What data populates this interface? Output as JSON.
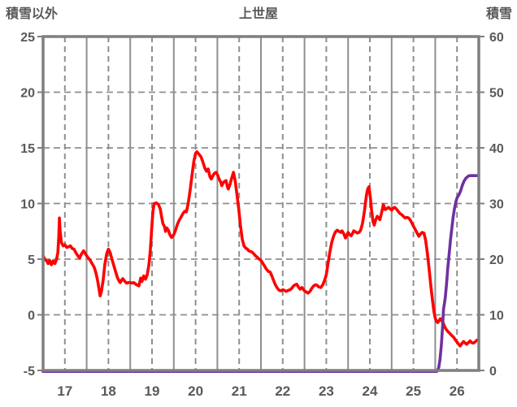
{
  "title": "上世屋",
  "colors": {
    "temp_line": "#ff0000",
    "snow_line": "#7030a0",
    "grid": "#8f8f8f",
    "frame": "#7f7f7f",
    "label": "#595959",
    "background": "#ffffff"
  },
  "chart_data": {
    "type": "line",
    "title": "上世屋",
    "xlim": [
      17,
      27
    ],
    "x_tick_labels": [
      "17",
      "18",
      "19",
      "20",
      "21",
      "22",
      "23",
      "24",
      "25",
      "26"
    ],
    "left_axis": {
      "label": "積雪以外",
      "lim": [
        -5,
        25
      ],
      "ticks": [
        25,
        20,
        15,
        10,
        5,
        0,
        -5
      ]
    },
    "right_axis": {
      "label": "積雪",
      "lim": [
        0,
        60
      ],
      "ticks": [
        60,
        50,
        40,
        30,
        20,
        10,
        0
      ]
    },
    "grid": {
      "horizontal_left_values": [
        20,
        15,
        10,
        5,
        0
      ],
      "vertical_solid_at_day_starts": true,
      "vertical_dashed_at_day_middles": true
    },
    "series": [
      {
        "name": "積雪以外",
        "axis": "left",
        "color": "#ff0000",
        "points": [
          [
            17.0,
            5.3
          ],
          [
            17.04,
            5.0
          ],
          [
            17.08,
            4.85
          ],
          [
            17.115,
            4.6
          ],
          [
            17.15,
            4.9
          ],
          [
            17.19,
            4.5
          ],
          [
            17.23,
            4.85
          ],
          [
            17.27,
            4.6
          ],
          [
            17.31,
            5.0
          ],
          [
            17.34,
            5.6
          ],
          [
            17.36,
            7.0
          ],
          [
            17.375,
            8.7
          ],
          [
            17.39,
            7.6
          ],
          [
            17.42,
            6.5
          ],
          [
            17.46,
            6.2
          ],
          [
            17.5,
            6.3
          ],
          [
            17.54,
            6.05
          ],
          [
            17.58,
            6.1
          ],
          [
            17.625,
            6.2
          ],
          [
            17.67,
            5.95
          ],
          [
            17.71,
            5.9
          ],
          [
            17.75,
            5.6
          ],
          [
            17.79,
            5.35
          ],
          [
            17.835,
            5.1
          ],
          [
            17.88,
            5.45
          ],
          [
            17.93,
            5.75
          ],
          [
            17.97,
            5.5
          ],
          [
            18.0,
            5.3
          ],
          [
            18.04,
            5.1
          ],
          [
            18.08,
            4.9
          ],
          [
            18.125,
            4.6
          ],
          [
            18.17,
            4.3
          ],
          [
            18.21,
            3.8
          ],
          [
            18.25,
            3.1
          ],
          [
            18.29,
            2.2
          ],
          [
            18.31,
            1.7
          ],
          [
            18.34,
            2.1
          ],
          [
            18.38,
            3.2
          ],
          [
            18.42,
            4.6
          ],
          [
            18.46,
            5.5
          ],
          [
            18.5,
            5.9
          ],
          [
            18.54,
            5.6
          ],
          [
            18.58,
            5.0
          ],
          [
            18.625,
            4.4
          ],
          [
            18.67,
            3.8
          ],
          [
            18.71,
            3.3
          ],
          [
            18.75,
            3.0
          ],
          [
            18.77,
            2.9
          ],
          [
            18.8,
            3.1
          ],
          [
            18.83,
            3.25
          ],
          [
            18.875,
            3.0
          ],
          [
            18.92,
            2.85
          ],
          [
            18.96,
            2.9
          ],
          [
            19.0,
            2.9
          ],
          [
            19.04,
            2.85
          ],
          [
            19.08,
            2.9
          ],
          [
            19.125,
            2.75
          ],
          [
            19.17,
            2.65
          ],
          [
            19.2,
            2.6
          ],
          [
            19.24,
            3.3
          ],
          [
            19.27,
            3.0
          ],
          [
            19.31,
            3.5
          ],
          [
            19.35,
            3.2
          ],
          [
            19.39,
            3.6
          ],
          [
            19.43,
            4.5
          ],
          [
            19.46,
            5.8
          ],
          [
            19.49,
            7.6
          ],
          [
            19.52,
            9.3
          ],
          [
            19.55,
            10.0
          ],
          [
            19.6,
            10.05
          ],
          [
            19.65,
            9.9
          ],
          [
            19.69,
            9.5
          ],
          [
            19.72,
            8.8
          ],
          [
            19.75,
            8.2
          ],
          [
            19.79,
            7.9
          ],
          [
            19.81,
            7.5
          ],
          [
            19.84,
            7.8
          ],
          [
            19.875,
            7.6
          ],
          [
            19.91,
            7.2
          ],
          [
            19.95,
            6.95
          ],
          [
            20.0,
            7.2
          ],
          [
            20.04,
            7.6
          ],
          [
            20.08,
            8.1
          ],
          [
            20.125,
            8.5
          ],
          [
            20.17,
            8.8
          ],
          [
            20.21,
            9.1
          ],
          [
            20.25,
            9.3
          ],
          [
            20.29,
            9.25
          ],
          [
            20.33,
            10.0
          ],
          [
            20.375,
            11.2
          ],
          [
            20.42,
            12.6
          ],
          [
            20.46,
            13.8
          ],
          [
            20.5,
            14.5
          ],
          [
            20.53,
            14.65
          ],
          [
            20.57,
            14.45
          ],
          [
            20.625,
            14.2
          ],
          [
            20.67,
            13.7
          ],
          [
            20.71,
            13.2
          ],
          [
            20.75,
            12.9
          ],
          [
            20.79,
            13.1
          ],
          [
            20.83,
            12.4
          ],
          [
            20.86,
            12.2
          ],
          [
            20.9,
            12.5
          ],
          [
            20.93,
            12.7
          ],
          [
            20.97,
            12.8
          ],
          [
            21.0,
            12.6
          ],
          [
            21.04,
            12.2
          ],
          [
            21.08,
            11.9
          ],
          [
            21.1,
            11.6
          ],
          [
            21.14,
            11.9
          ],
          [
            21.17,
            12.0
          ],
          [
            21.2,
            12.05
          ],
          [
            21.23,
            11.5
          ],
          [
            21.25,
            11.3
          ],
          [
            21.29,
            11.7
          ],
          [
            21.33,
            12.3
          ],
          [
            21.37,
            12.8
          ],
          [
            21.41,
            12.0
          ],
          [
            21.45,
            10.8
          ],
          [
            21.49,
            9.5
          ],
          [
            21.53,
            8.0
          ],
          [
            21.57,
            6.8
          ],
          [
            21.61,
            6.2
          ],
          [
            21.65,
            6.0
          ],
          [
            21.69,
            5.9
          ],
          [
            21.72,
            5.75
          ],
          [
            21.75,
            5.7
          ],
          [
            21.79,
            5.65
          ],
          [
            21.83,
            5.5
          ],
          [
            21.875,
            5.3
          ],
          [
            21.92,
            5.15
          ],
          [
            21.96,
            5.0
          ],
          [
            22.0,
            4.9
          ],
          [
            22.04,
            4.65
          ],
          [
            22.08,
            4.4
          ],
          [
            22.125,
            4.1
          ],
          [
            22.17,
            3.9
          ],
          [
            22.21,
            3.85
          ],
          [
            22.25,
            3.5
          ],
          [
            22.29,
            3.1
          ],
          [
            22.33,
            2.7
          ],
          [
            22.375,
            2.4
          ],
          [
            22.42,
            2.2
          ],
          [
            22.46,
            2.15
          ],
          [
            22.5,
            2.25
          ],
          [
            22.54,
            2.2
          ],
          [
            22.58,
            2.1
          ],
          [
            22.625,
            2.2
          ],
          [
            22.67,
            2.25
          ],
          [
            22.71,
            2.4
          ],
          [
            22.75,
            2.6
          ],
          [
            22.79,
            2.7
          ],
          [
            22.82,
            2.75
          ],
          [
            22.86,
            2.5
          ],
          [
            22.9,
            2.3
          ],
          [
            22.94,
            2.45
          ],
          [
            22.97,
            2.3
          ],
          [
            23.0,
            2.15
          ],
          [
            23.04,
            2.05
          ],
          [
            23.08,
            1.95
          ],
          [
            23.125,
            2.1
          ],
          [
            23.17,
            2.4
          ],
          [
            23.21,
            2.6
          ],
          [
            23.25,
            2.7
          ],
          [
            23.29,
            2.65
          ],
          [
            23.33,
            2.5
          ],
          [
            23.375,
            2.45
          ],
          [
            23.42,
            2.7
          ],
          [
            23.46,
            3.1
          ],
          [
            23.5,
            3.6
          ],
          [
            23.54,
            4.6
          ],
          [
            23.58,
            5.6
          ],
          [
            23.625,
            6.5
          ],
          [
            23.67,
            7.1
          ],
          [
            23.71,
            7.45
          ],
          [
            23.75,
            7.6
          ],
          [
            23.79,
            7.5
          ],
          [
            23.83,
            7.4
          ],
          [
            23.86,
            7.55
          ],
          [
            23.9,
            7.3
          ],
          [
            23.94,
            6.9
          ],
          [
            23.97,
            7.15
          ],
          [
            24.0,
            7.4
          ],
          [
            24.04,
            7.2
          ],
          [
            24.07,
            7.1
          ],
          [
            24.1,
            7.3
          ],
          [
            24.13,
            7.55
          ],
          [
            24.17,
            7.45
          ],
          [
            24.21,
            7.35
          ],
          [
            24.25,
            7.4
          ],
          [
            24.29,
            7.6
          ],
          [
            24.33,
            8.2
          ],
          [
            24.375,
            9.3
          ],
          [
            24.42,
            10.7
          ],
          [
            24.45,
            11.3
          ],
          [
            24.48,
            11.5
          ],
          [
            24.51,
            10.6
          ],
          [
            24.54,
            9.4
          ],
          [
            24.57,
            8.4
          ],
          [
            24.6,
            8.05
          ],
          [
            24.63,
            8.5
          ],
          [
            24.67,
            8.85
          ],
          [
            24.7,
            8.7
          ],
          [
            24.73,
            8.55
          ],
          [
            24.77,
            9.2
          ],
          [
            24.81,
            9.9
          ],
          [
            24.85,
            9.45
          ],
          [
            24.89,
            9.55
          ],
          [
            24.93,
            9.65
          ],
          [
            24.97,
            9.5
          ],
          [
            25.0,
            9.4
          ],
          [
            25.04,
            9.6
          ],
          [
            25.07,
            9.65
          ],
          [
            25.11,
            9.5
          ],
          [
            25.15,
            9.3
          ],
          [
            25.19,
            9.1
          ],
          [
            25.23,
            9.0
          ],
          [
            25.27,
            8.85
          ],
          [
            25.31,
            8.7
          ],
          [
            25.35,
            8.75
          ],
          [
            25.39,
            8.7
          ],
          [
            25.43,
            8.5
          ],
          [
            25.47,
            8.2
          ],
          [
            25.51,
            7.9
          ],
          [
            25.55,
            7.6
          ],
          [
            25.59,
            7.3
          ],
          [
            25.625,
            7.05
          ],
          [
            25.66,
            7.25
          ],
          [
            25.7,
            7.4
          ],
          [
            25.74,
            7.35
          ],
          [
            25.78,
            6.7
          ],
          [
            25.82,
            5.5
          ],
          [
            25.86,
            4.1
          ],
          [
            25.9,
            2.6
          ],
          [
            25.94,
            1.2
          ],
          [
            25.97,
            0.3
          ],
          [
            26.0,
            -0.3
          ],
          [
            26.03,
            -0.6
          ],
          [
            26.06,
            -0.7
          ],
          [
            26.09,
            -0.5
          ],
          [
            26.12,
            -0.35
          ],
          [
            26.15,
            -0.5
          ],
          [
            26.19,
            -0.8
          ],
          [
            26.22,
            -1.1
          ],
          [
            26.25,
            -1.3
          ],
          [
            26.29,
            -1.5
          ],
          [
            26.33,
            -1.65
          ],
          [
            26.375,
            -1.85
          ],
          [
            26.42,
            -2.0
          ],
          [
            26.46,
            -2.25
          ],
          [
            26.5,
            -2.45
          ],
          [
            26.54,
            -2.65
          ],
          [
            26.57,
            -2.8
          ],
          [
            26.61,
            -2.6
          ],
          [
            26.65,
            -2.4
          ],
          [
            26.69,
            -2.55
          ],
          [
            26.72,
            -2.65
          ],
          [
            26.76,
            -2.5
          ],
          [
            26.8,
            -2.35
          ],
          [
            26.84,
            -2.5
          ],
          [
            26.875,
            -2.55
          ],
          [
            26.91,
            -2.45
          ],
          [
            26.95,
            -2.3
          ],
          [
            26.98,
            -2.25
          ]
        ]
      },
      {
        "name": "積雪",
        "axis": "right",
        "color": "#7030a0",
        "points": [
          [
            17.0,
            0
          ],
          [
            26.04,
            0
          ],
          [
            26.08,
            0.5
          ],
          [
            26.11,
            2
          ],
          [
            26.14,
            4.5
          ],
          [
            26.17,
            8
          ],
          [
            26.19,
            11
          ],
          [
            26.21,
            12
          ],
          [
            26.23,
            13
          ],
          [
            26.26,
            15.5
          ],
          [
            26.29,
            18.5
          ],
          [
            26.32,
            21
          ],
          [
            26.35,
            23.5
          ],
          [
            26.38,
            25.5
          ],
          [
            26.41,
            27.5
          ],
          [
            26.44,
            29
          ],
          [
            26.47,
            30.2
          ],
          [
            26.5,
            31
          ],
          [
            26.54,
            31.5
          ],
          [
            26.58,
            32.2
          ],
          [
            26.62,
            33.2
          ],
          [
            26.66,
            34
          ],
          [
            26.7,
            34.5
          ],
          [
            26.74,
            34.8
          ],
          [
            26.78,
            35
          ],
          [
            27.0,
            35
          ]
        ]
      }
    ]
  }
}
